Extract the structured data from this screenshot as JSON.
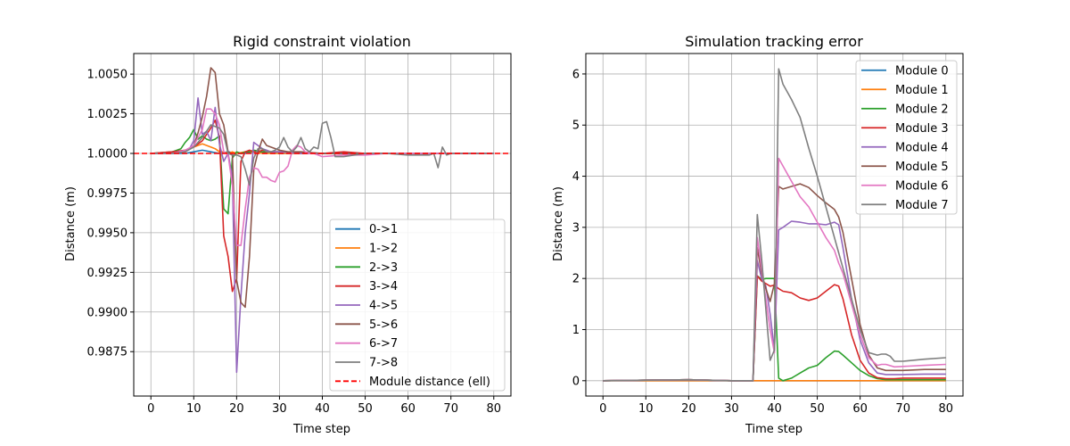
{
  "chart_data": [
    {
      "type": "line",
      "title": "Rigid constraint violation",
      "xlabel": "Time step",
      "ylabel": "Distance (m)",
      "xlim": [
        -4,
        84
      ],
      "ylim": [
        0.9847,
        1.0063
      ],
      "xticks": [
        0,
        10,
        20,
        30,
        40,
        50,
        60,
        70,
        80
      ],
      "xtick_labels": [
        "0",
        "10",
        "20",
        "30",
        "40",
        "50",
        "60",
        "70",
        "80"
      ],
      "yticks": [
        0.9875,
        0.99,
        0.9925,
        0.995,
        0.9975,
        1.0,
        1.0025,
        1.005
      ],
      "ytick_labels": [
        "0.9875",
        "0.9900",
        "0.9925",
        "0.9950",
        "0.9975",
        "1.0000",
        "1.0025",
        "1.0050"
      ],
      "grid": true,
      "legend_position": "lower right",
      "series": [
        {
          "name": "0->1",
          "color": "#1f77b4",
          "x": [
            0,
            8,
            10,
            12,
            14,
            16,
            18,
            20,
            22,
            24,
            30,
            40,
            50,
            60,
            70,
            80
          ],
          "y": [
            1.0,
            1.0,
            1.0001,
            1.0002,
            1.0001,
            1.0,
            1.0001,
            1.0,
            1.0,
            1.0001,
            1.0,
            1.0,
            1.0,
            1.0,
            1.0,
            1.0
          ]
        },
        {
          "name": "1->2",
          "color": "#ff7f0e",
          "x": [
            0,
            6,
            8,
            10,
            12,
            14,
            15,
            16,
            17,
            18,
            19,
            20,
            22,
            24,
            26,
            30,
            40,
            50,
            60,
            70,
            80
          ],
          "y": [
            1.0,
            1.0001,
            1.0002,
            1.0004,
            1.0006,
            1.0004,
            1.0003,
            1.0001,
            1.0001,
            1.0,
            1.0001,
            1.0,
            1.0001,
            1.0001,
            1.0,
            1.0,
            1.0,
            1.0,
            1.0,
            1.0,
            1.0
          ]
        },
        {
          "name": "2->3",
          "color": "#2ca02c",
          "x": [
            0,
            5,
            7,
            8,
            9,
            10,
            11,
            12,
            13,
            14,
            15,
            16,
            17,
            18,
            19,
            20,
            21,
            22,
            23,
            24,
            26,
            30,
            40,
            50,
            60,
            70,
            80
          ],
          "y": [
            1.0,
            1.0001,
            1.0003,
            1.0007,
            1.001,
            1.0015,
            1.0009,
            1.0011,
            1.0009,
            1.0008,
            1.0009,
            1.0011,
            0.9965,
            0.9962,
            0.9997,
            1.0001,
            1.0,
            1.0001,
            1.0001,
            1.0002,
            1.0001,
            1.0001,
            1.0,
            1.0,
            1.0,
            1.0,
            1.0
          ]
        },
        {
          "name": "3->4",
          "color": "#d62728",
          "x": [
            0,
            5,
            8,
            10,
            12,
            13,
            14,
            15,
            16,
            17,
            18,
            19,
            20,
            21,
            22,
            23,
            24,
            25,
            26,
            28,
            30,
            35,
            40,
            45,
            50,
            55,
            60,
            65,
            70,
            75,
            80
          ],
          "y": [
            1.0,
            1.0001,
            1.0002,
            1.0004,
            1.0008,
            1.0012,
            1.0016,
            1.0021,
            1.001,
            0.9948,
            0.9935,
            0.9913,
            0.9921,
            0.9995,
            1.0001,
            1.0002,
            1.0001,
            1.0001,
            1.0002,
            1.0001,
            1.0001,
            1.0,
            1.0,
            1.0001,
            1.0,
            1.0,
            1.0,
            1.0,
            1.0,
            1.0,
            1.0
          ]
        },
        {
          "name": "4->5",
          "color": "#9467bd",
          "x": [
            0,
            5,
            8,
            9,
            10,
            11,
            12,
            13,
            14,
            15,
            16,
            17,
            18,
            19,
            20,
            21,
            22,
            23,
            24,
            25,
            26,
            27,
            28,
            30,
            35,
            40,
            45,
            50,
            55,
            60,
            65,
            70,
            80
          ],
          "y": [
            1.0,
            1.0,
            1.0001,
            1.0003,
            1.0008,
            1.0035,
            1.0012,
            1.0014,
            1.0008,
            1.0029,
            1.0006,
            0.9995,
            1.0,
            0.9985,
            0.9862,
            0.991,
            0.995,
            0.9975,
            1.0007,
            1.0005,
            1.0003,
            1.0002,
            1.0001,
            1.0001,
            1.0,
            1.0,
            1.0,
            1.0,
            1.0,
            1.0,
            1.0,
            1.0,
            1.0
          ]
        },
        {
          "name": "5->6",
          "color": "#8c564b",
          "x": [
            0,
            5,
            8,
            10,
            11,
            12,
            13,
            14,
            15,
            16,
            17,
            18,
            19,
            20,
            21,
            22,
            23,
            24,
            25,
            26,
            27,
            28,
            30,
            32,
            35,
            40,
            45,
            50,
            55,
            60,
            65,
            70,
            80
          ],
          "y": [
            1.0,
            1.0,
            1.0001,
            1.0005,
            1.0013,
            1.0023,
            1.0036,
            1.0054,
            1.0051,
            1.0025,
            1.0018,
            1.0001,
            0.9999,
            0.992,
            0.9906,
            0.9903,
            0.9935,
            0.999,
            1.0001,
            1.0009,
            1.0005,
            1.0004,
            1.0002,
            1.0001,
            1.0001,
            1.0,
            1.0,
            1.0,
            1.0,
            1.0,
            1.0,
            1.0,
            1.0
          ]
        },
        {
          "name": "6->7",
          "color": "#e377c2",
          "x": [
            0,
            5,
            8,
            10,
            12,
            13,
            14,
            15,
            16,
            17,
            18,
            19,
            20,
            21,
            22,
            23,
            24,
            25,
            26,
            27,
            28,
            29,
            30,
            31,
            32,
            33,
            34,
            35,
            36,
            37,
            38,
            39,
            40,
            45,
            50,
            55,
            60,
            65,
            70,
            80
          ],
          "y": [
            1.0,
            1.0,
            1.0002,
            1.0005,
            1.0015,
            1.0028,
            1.0028,
            1.0025,
            1.0018,
            1.0001,
            0.9999,
            0.998,
            0.9942,
            0.9942,
            0.9965,
            0.9985,
            0.9991,
            0.999,
            0.9985,
            0.9985,
            0.9983,
            0.9982,
            0.9988,
            0.9989,
            0.9992,
            1.0002,
            1.0005,
            1.0004,
            1.0001,
            1.0,
            1.0,
            0.9999,
            0.9998,
            0.9999,
            0.9999,
            1.0,
            1.0,
            1.0,
            1.0,
            1.0
          ]
        },
        {
          "name": "7->8",
          "color": "#7f7f7f",
          "x": [
            0,
            5,
            8,
            10,
            12,
            14,
            16,
            17,
            18,
            19,
            20,
            21,
            22,
            23,
            24,
            25,
            26,
            27,
            28,
            29,
            30,
            31,
            32,
            33,
            34,
            35,
            36,
            37,
            38,
            39,
            40,
            41,
            42,
            43,
            45,
            50,
            55,
            60,
            65,
            66,
            67,
            68,
            69,
            70,
            75,
            80
          ],
          "y": [
            1.0,
            1.0,
            1.0001,
            1.0004,
            1.001,
            1.0018,
            1.0016,
            1.0012,
            1.0,
            0.9999,
            0.9999,
            0.9998,
            0.999,
            0.998,
            0.9997,
            1.0003,
            1.0003,
            1.0001,
            1.0001,
            1.0002,
            1.0004,
            1.001,
            1.0004,
            1.0001,
            1.0004,
            1.001,
            1.0003,
            1.0001,
            1.0004,
            1.0003,
            1.0019,
            1.002,
            1.001,
            0.9998,
            0.9998,
            1.0,
            1.0,
            0.9999,
            0.9999,
            1.0,
            0.9991,
            1.0004,
            0.9999,
            1.0,
            1.0,
            1.0
          ]
        },
        {
          "name": "Module distance (ell)",
          "color": "#ff0000",
          "dashed": true,
          "hline": 1.0
        }
      ]
    },
    {
      "type": "line",
      "title": "Simulation tracking error",
      "xlabel": "Time step",
      "ylabel": "Distance (m)",
      "xlim": [
        -4,
        84
      ],
      "ylim": [
        -0.3,
        6.4
      ],
      "xticks": [
        0,
        10,
        20,
        30,
        40,
        50,
        60,
        70,
        80
      ],
      "xtick_labels": [
        "0",
        "10",
        "20",
        "30",
        "40",
        "50",
        "60",
        "70",
        "80"
      ],
      "yticks": [
        0,
        1,
        2,
        3,
        4,
        5,
        6
      ],
      "ytick_labels": [
        "0",
        "1",
        "2",
        "3",
        "4",
        "5",
        "6"
      ],
      "grid": true,
      "legend_position": "upper right",
      "series": [
        {
          "name": "Module 0",
          "color": "#1f77b4",
          "x": [
            0,
            80
          ],
          "y": [
            0.0,
            0.0
          ]
        },
        {
          "name": "Module 1",
          "color": "#ff7f0e",
          "x": [
            0,
            80
          ],
          "y": [
            0.0,
            0.0
          ]
        },
        {
          "name": "Module 2",
          "color": "#2ca02c",
          "x": [
            0,
            10,
            20,
            30,
            35,
            36,
            37,
            38,
            39,
            40,
            41,
            42,
            44,
            46,
            48,
            50,
            52,
            54,
            55,
            56,
            58,
            60,
            62,
            64,
            66,
            68,
            70,
            75,
            80
          ],
          "y": [
            0.0,
            0.01,
            0.02,
            0.0,
            0.0,
            2.05,
            1.98,
            2.0,
            2.0,
            2.0,
            0.05,
            0.0,
            0.05,
            0.15,
            0.25,
            0.3,
            0.45,
            0.58,
            0.57,
            0.5,
            0.35,
            0.2,
            0.1,
            0.04,
            0.02,
            0.02,
            0.02,
            0.02,
            0.02
          ]
        },
        {
          "name": "Module 3",
          "color": "#d62728",
          "x": [
            0,
            10,
            20,
            30,
            35,
            36,
            37,
            38,
            39,
            40,
            41,
            42,
            44,
            46,
            48,
            50,
            52,
            54,
            55,
            56,
            58,
            60,
            62,
            64,
            66,
            68,
            70,
            75,
            80
          ],
          "y": [
            0.0,
            0.01,
            0.02,
            0.0,
            0.0,
            2.05,
            1.95,
            1.9,
            1.85,
            1.87,
            1.8,
            1.75,
            1.72,
            1.62,
            1.57,
            1.62,
            1.75,
            1.88,
            1.85,
            1.6,
            0.9,
            0.4,
            0.15,
            0.06,
            0.04,
            0.04,
            0.05,
            0.05,
            0.05
          ]
        },
        {
          "name": "Module 4",
          "color": "#9467bd",
          "x": [
            0,
            10,
            20,
            30,
            35,
            36,
            37,
            38,
            39,
            40,
            41,
            42,
            44,
            46,
            48,
            50,
            52,
            54,
            55,
            56,
            58,
            60,
            62,
            64,
            66,
            68,
            70,
            75,
            80
          ],
          "y": [
            0.0,
            0.01,
            0.02,
            0.0,
            0.0,
            2.35,
            2.0,
            1.85,
            1.3,
            0.6,
            2.95,
            3.0,
            3.12,
            3.1,
            3.07,
            3.07,
            3.05,
            3.1,
            3.05,
            2.6,
            1.6,
            0.8,
            0.35,
            0.15,
            0.12,
            0.12,
            0.12,
            0.13,
            0.13
          ]
        },
        {
          "name": "Module 5",
          "color": "#8c564b",
          "x": [
            0,
            10,
            20,
            30,
            35,
            36,
            37,
            38,
            39,
            40,
            41,
            42,
            44,
            46,
            48,
            50,
            52,
            54,
            55,
            56,
            58,
            60,
            62,
            64,
            66,
            68,
            70,
            75,
            80
          ],
          "y": [
            0.0,
            0.01,
            0.02,
            0.0,
            0.0,
            2.6,
            2.1,
            1.8,
            1.55,
            1.9,
            3.8,
            3.75,
            3.8,
            3.85,
            3.78,
            3.62,
            3.48,
            3.35,
            3.2,
            2.9,
            2.0,
            1.1,
            0.5,
            0.25,
            0.2,
            0.2,
            0.2,
            0.22,
            0.22
          ]
        },
        {
          "name": "Module 6",
          "color": "#e377c2",
          "x": [
            0,
            10,
            20,
            30,
            35,
            36,
            37,
            38,
            39,
            40,
            41,
            42,
            44,
            46,
            48,
            50,
            52,
            54,
            55,
            56,
            58,
            60,
            62,
            64,
            65,
            66,
            68,
            70,
            75,
            80
          ],
          "y": [
            0.0,
            0.01,
            0.02,
            0.0,
            0.0,
            2.8,
            2.2,
            1.6,
            1.0,
            0.55,
            4.35,
            4.2,
            3.9,
            3.6,
            3.4,
            3.1,
            2.8,
            2.55,
            2.3,
            2.1,
            1.5,
            0.9,
            0.45,
            0.3,
            0.32,
            0.32,
            0.27,
            0.28,
            0.3,
            0.32
          ]
        },
        {
          "name": "Module 7",
          "color": "#7f7f7f",
          "x": [
            0,
            10,
            20,
            30,
            35,
            36,
            37,
            38,
            39,
            40,
            41,
            42,
            44,
            46,
            48,
            50,
            52,
            54,
            55,
            56,
            58,
            60,
            62,
            64,
            65,
            66,
            67,
            68,
            70,
            75,
            80
          ],
          "y": [
            0.0,
            0.01,
            0.02,
            0.0,
            0.0,
            3.25,
            2.4,
            1.4,
            0.4,
            0.6,
            6.1,
            5.8,
            5.5,
            5.15,
            4.55,
            4.0,
            3.4,
            2.8,
            2.5,
            2.2,
            1.6,
            1.0,
            0.55,
            0.5,
            0.52,
            0.52,
            0.48,
            0.38,
            0.38,
            0.42,
            0.45
          ]
        }
      ]
    }
  ]
}
